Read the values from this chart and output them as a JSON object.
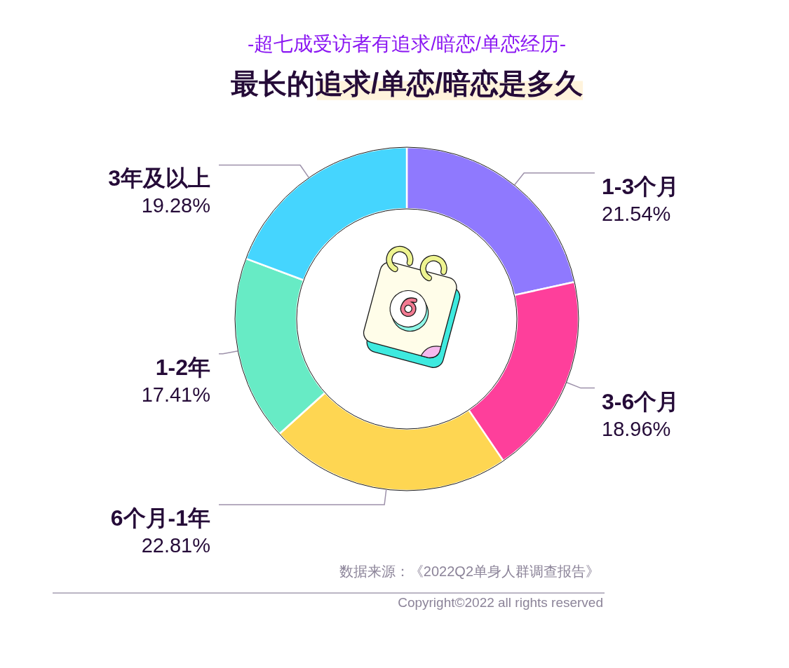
{
  "chart_data": {
    "type": "donut",
    "title": "最长的追求/单恋/暗恋是多久",
    "subtitle": "-超七成受访者有追求/暗恋/单恋经历-",
    "categories": [
      "1-3个月",
      "3-6个月",
      "6个月-1年",
      "1-2年",
      "3年及以上"
    ],
    "values": [
      21.54,
      18.96,
      22.81,
      17.41,
      19.28
    ],
    "colors": [
      "#8f79fe",
      "#fe3f9b",
      "#fed652",
      "#67ebc5",
      "#45d5fe"
    ],
    "value_labels": [
      "21.54%",
      "18.96%",
      "22.81%",
      "17.41%",
      "19.28%"
    ],
    "annotations": [
      "数据来源：《2022Q2单身人群调查报告》",
      "Copyright©2022 all rights reserved"
    ]
  }
}
